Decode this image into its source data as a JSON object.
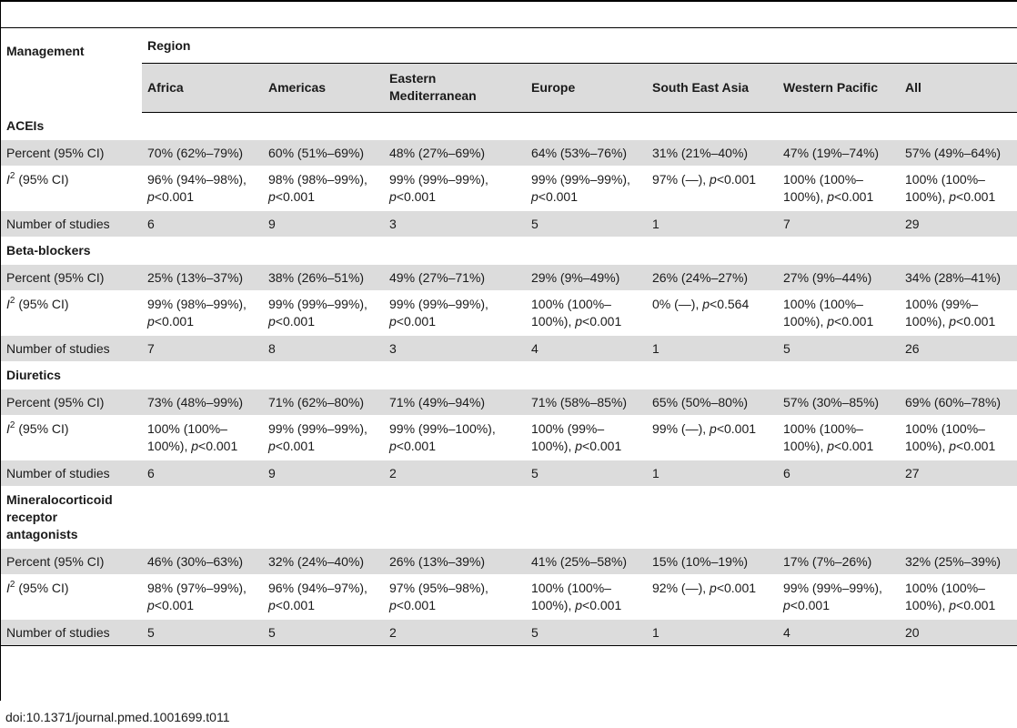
{
  "table": {
    "management_label": "Management",
    "region_label": "Region",
    "columns": [
      "Africa",
      "Americas",
      "Eastern Mediterranean",
      "Europe",
      "South East Asia",
      "Western Pacific",
      "All"
    ],
    "ci_label": "(95% CI)",
    "sections": [
      {
        "title": "ACEIs",
        "percent_label": "Percent (95% CI)",
        "percent": [
          "70% (62%–79%)",
          "60% (51%–69%)",
          "48% (27%–69%)",
          "64% (53%–76%)",
          "31% (21%–40%)",
          "47% (19%–74%)",
          "57% (49%–64%)"
        ],
        "i2": [
          {
            "a": "96% (94%–98%),",
            "p": "<0.001"
          },
          {
            "a": "98% (98%–99%),",
            "p": "<0.001"
          },
          {
            "a": "99% (99%–99%),",
            "p": "<0.001"
          },
          {
            "a": "99% (99%–99%),",
            "p": "<0.001"
          },
          {
            "a": "97% (—),",
            "p": "<0.001"
          },
          {
            "a": "100% (100%–100%),",
            "p": "<0.001"
          },
          {
            "a": "100% (100%–100%),",
            "p": "<0.001"
          }
        ],
        "n_label": "Number of studies",
        "n": [
          "6",
          "9",
          "3",
          "5",
          "1",
          "7",
          "29"
        ]
      },
      {
        "title": "Beta-blockers",
        "percent_label": "Percent (95% CI)",
        "percent": [
          "25% (13%–37%)",
          "38% (26%–51%)",
          "49% (27%–71%)",
          "29% (9%–49%)",
          "26% (24%–27%)",
          "27% (9%–44%)",
          "34% (28%–41%)"
        ],
        "i2": [
          {
            "a": "99% (98%–99%),",
            "p": "<0.001"
          },
          {
            "a": "99% (99%–99%),",
            "p": "<0.001"
          },
          {
            "a": "99% (99%–99%),",
            "p": "<0.001"
          },
          {
            "a": "100% (100%–100%),",
            "p": "<0.001"
          },
          {
            "a": "0% (—),",
            "p": "<0.564"
          },
          {
            "a": "100% (100%–100%),",
            "p": "<0.001"
          },
          {
            "a": "100% (99%–100%),",
            "p": "<0.001"
          }
        ],
        "n_label": "Number of studies",
        "n": [
          "7",
          "8",
          "3",
          "4",
          "1",
          "5",
          "26"
        ]
      },
      {
        "title": "Diuretics",
        "percent_label": "Percent (95% CI)",
        "percent": [
          "73% (48%–99%)",
          "71% (62%–80%)",
          "71% (49%–94%)",
          "71% (58%–85%)",
          "65% (50%–80%)",
          "57% (30%–85%)",
          "69% (60%–78%)"
        ],
        "i2": [
          {
            "a": "100% (100%–100%),",
            "p": "<0.001"
          },
          {
            "a": "99% (99%–99%),",
            "p": "<0.001"
          },
          {
            "a": "99% (99%–100%),",
            "p": "<0.001"
          },
          {
            "a": "100% (99%–100%),",
            "p": "<0.001"
          },
          {
            "a": "99% (—),",
            "p": "<0.001"
          },
          {
            "a": "100% (100%–100%),",
            "p": "<0.001"
          },
          {
            "a": "100% (100%–100%),",
            "p": "<0.001"
          }
        ],
        "n_label": "Number of studies",
        "n": [
          "6",
          "9",
          "2",
          "5",
          "1",
          "6",
          "27"
        ]
      },
      {
        "title": "Mineralocorticoid receptor antagonists",
        "percent_label": "Percent (95% CI)",
        "percent": [
          "46% (30%–63%)",
          "32% (24%–40%)",
          "26% (13%–39%)",
          "41% (25%–58%)",
          "15% (10%–19%)",
          "17% (7%–26%)",
          "32% (25%–39%)"
        ],
        "i2": [
          {
            "a": "98% (97%–99%),",
            "p": "<0.001"
          },
          {
            "a": "96% (94%–97%),",
            "p": "<0.001"
          },
          {
            "a": "97% (95%–98%),",
            "p": "<0.001"
          },
          {
            "a": "100% (100%–100%),",
            "p": "<0.001"
          },
          {
            "a": "92% (—),",
            "p": "<0.001"
          },
          {
            "a": "99% (99%–99%),",
            "p": "<0.001"
          },
          {
            "a": "100% (100%–100%),",
            "p": "<0.001"
          }
        ],
        "n_label": "Number of studies",
        "n": [
          "5",
          "5",
          "2",
          "5",
          "1",
          "4",
          "20"
        ]
      }
    ]
  },
  "doi": "doi:10.1371/journal.pmed.1001699.t011"
}
